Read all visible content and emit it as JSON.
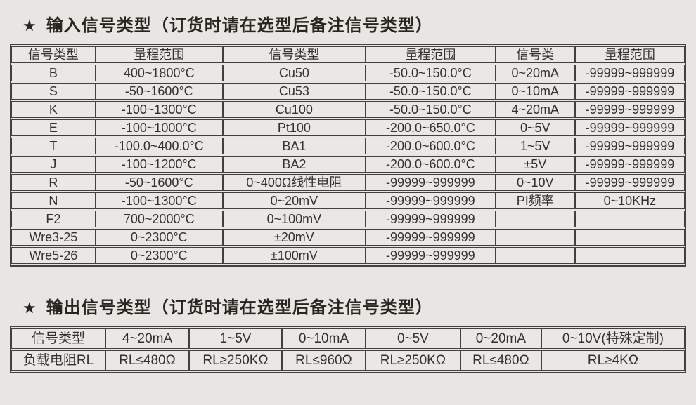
{
  "colors": {
    "page_bg": "#e8e5e2",
    "cell_bg": "#eae8e6",
    "border": "#45403b",
    "text": "#34302d",
    "title": "#282420"
  },
  "sections": {
    "input": {
      "star_icon": "★",
      "title": "输入信号类型（订货时请在选型后备注信号类型）",
      "table": {
        "headers": [
          "信号类型",
          "量程范围",
          "信号类型",
          "量程范围",
          "信号类",
          "量程范围"
        ],
        "rows": [
          [
            "B",
            "400~1800°C",
            "Cu50",
            "-50.0~150.0°C",
            "0~20mA",
            "-99999~999999"
          ],
          [
            "S",
            "-50~1600°C",
            "Cu53",
            "-50.0~150.0°C",
            "0~10mA",
            "-99999~999999"
          ],
          [
            "K",
            "-100~1300°C",
            "Cu100",
            "-50.0~150.0°C",
            "4~20mA",
            "-99999~999999"
          ],
          [
            "E",
            "-100~1000°C",
            "Pt100",
            "-200.0~650.0°C",
            "0~5V",
            "-99999~999999"
          ],
          [
            "T",
            "-100.0~400.0°C",
            "BA1",
            "-200.0~600.0°C",
            "1~5V",
            "-99999~999999"
          ],
          [
            "J",
            "-100~1200°C",
            "BA2",
            "-200.0~600.0°C",
            "±5V",
            "-99999~999999"
          ],
          [
            "R",
            "-50~1600°C",
            "0~400Ω线性电阻",
            "-99999~999999",
            "0~10V",
            "-99999~999999"
          ],
          [
            "N",
            "-100~1300°C",
            "0~20mV",
            "-99999~999999",
            "PI频率",
            "0~10KHz"
          ],
          [
            "F2",
            "700~2000°C",
            "0~100mV",
            "-99999~999999",
            "",
            ""
          ],
          [
            "Wre3-25",
            "0~2300°C",
            "±20mV",
            "-99999~999999",
            "",
            ""
          ],
          [
            "Wre5-26",
            "0~2300°C",
            "±100mV",
            "-99999~999999",
            "",
            ""
          ]
        ]
      }
    },
    "output": {
      "star_icon": "★",
      "title": "输出信号类型（订货时请在选型后备注信号类型）",
      "table": {
        "rows": [
          [
            "信号类型",
            "4~20mA",
            "1~5V",
            "0~10mA",
            "0~5V",
            "0~20mA",
            "0~10V(特殊定制)"
          ],
          [
            "负载电阻RL",
            "RL≤480Ω",
            "RL≥250KΩ",
            "RL≤960Ω",
            "RL≥250KΩ",
            "RL≤480Ω",
            "RL≥4KΩ"
          ]
        ]
      }
    }
  }
}
